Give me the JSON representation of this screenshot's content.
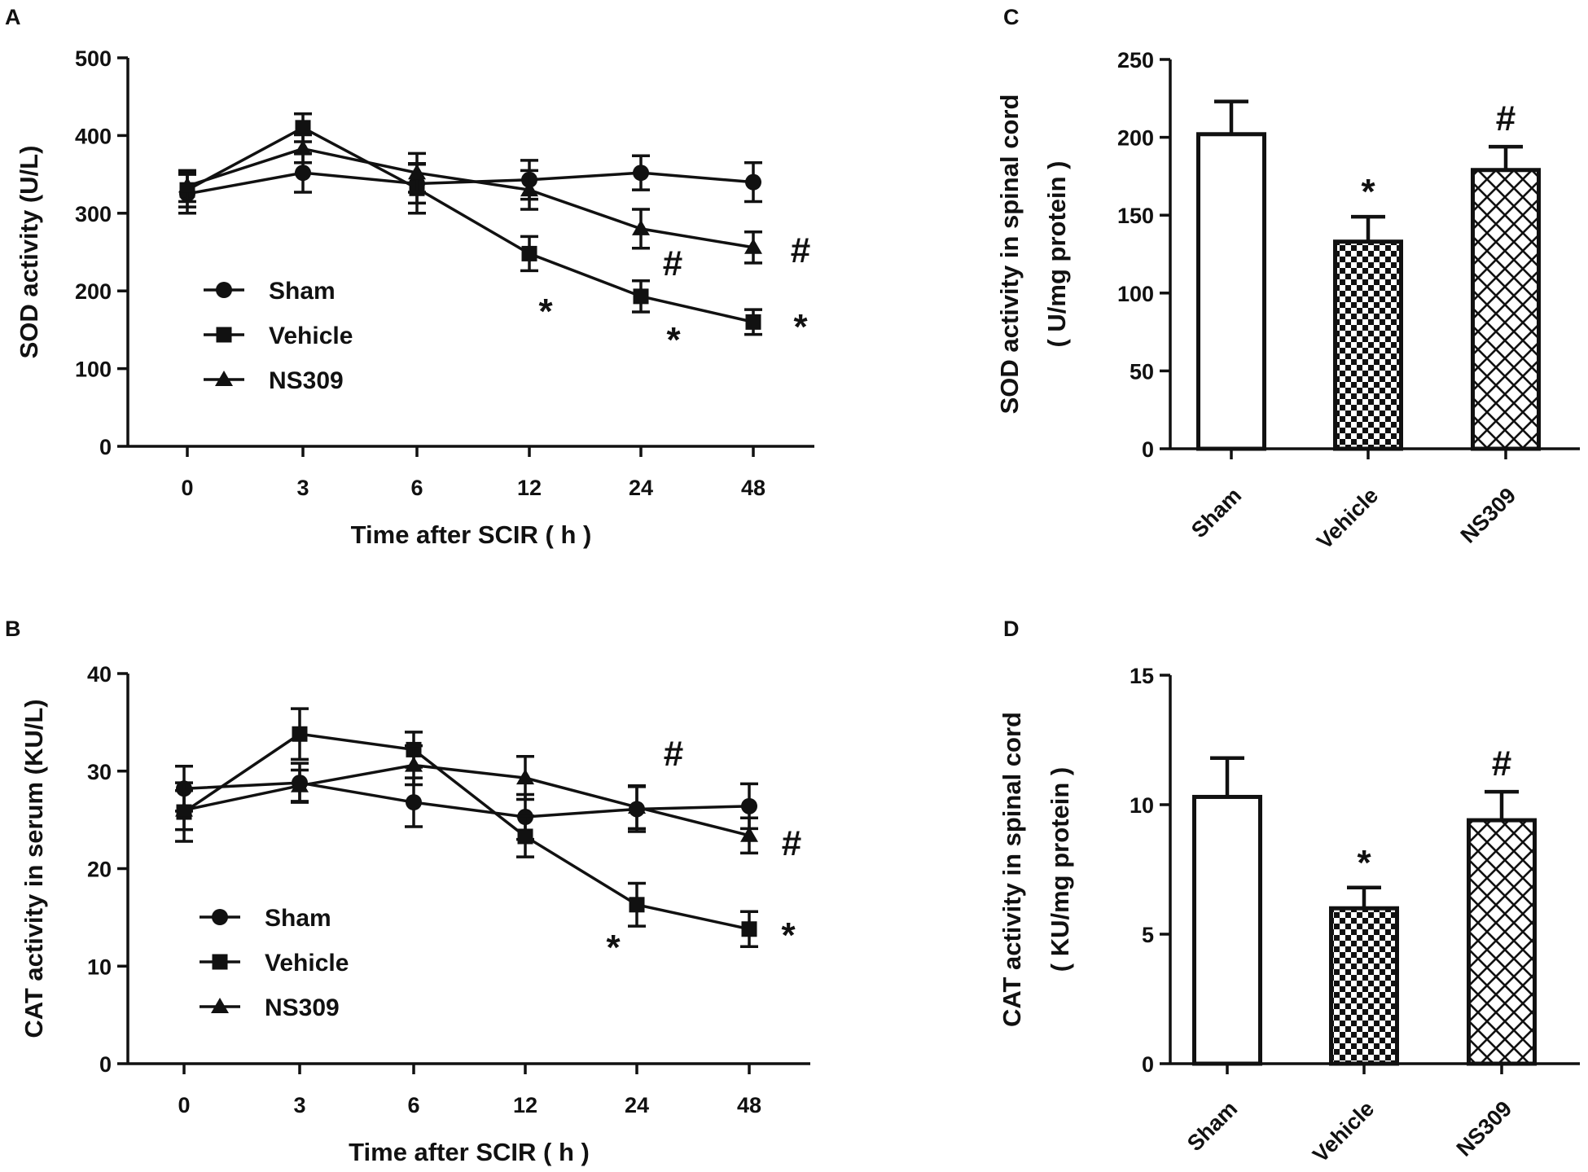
{
  "chart_data": [
    {
      "panel": "A",
      "type": "line",
      "ylabel": "SOD activity (U/L)",
      "xlabel": "Time after SCIR ( h )",
      "categories": [
        "0",
        "3",
        "6",
        "12",
        "24",
        "48"
      ],
      "ylim": [
        0,
        500
      ],
      "yticks": [
        0,
        100,
        200,
        300,
        400,
        500
      ],
      "legend": [
        "Sham",
        "Vehicle",
        "NS309"
      ],
      "legend_position": "bottom-left",
      "series": [
        {
          "name": "Sham",
          "marker": "circle",
          "values": [
            325,
            352,
            338,
            343,
            352,
            340
          ],
          "errors": [
            25,
            25,
            25,
            25,
            22,
            25
          ]
        },
        {
          "name": "Vehicle",
          "marker": "square",
          "values": [
            330,
            410,
            332,
            248,
            193,
            160
          ],
          "errors": [
            22,
            18,
            32,
            22,
            20,
            16
          ]
        },
        {
          "name": "NS309",
          "marker": "triangle",
          "values": [
            335,
            383,
            352,
            330,
            280,
            256
          ],
          "errors": [
            20,
            18,
            25,
            25,
            25,
            20
          ]
        }
      ],
      "annotations": [
        {
          "text": "*",
          "category_index": 3,
          "near_value": 180
        },
        {
          "text": "#",
          "category_index": 4,
          "near_value": 232
        },
        {
          "text": "*",
          "category_index": 4,
          "near_value": 140
        },
        {
          "text": "#",
          "category_index": 5,
          "near_value": 258
        },
        {
          "text": "*",
          "category_index": 5,
          "near_value": 150
        }
      ]
    },
    {
      "panel": "B",
      "type": "line",
      "ylabel": "CAT activity in serum (KU/L)",
      "xlabel": "Time after SCIR ( h )",
      "categories": [
        "0",
        "3",
        "6",
        "12",
        "24",
        "48"
      ],
      "ylim": [
        0,
        40
      ],
      "yticks": [
        0,
        10,
        20,
        30,
        40
      ],
      "legend": [
        "Sham",
        "Vehicle",
        "NS309"
      ],
      "legend_position": "bottom-left",
      "series": [
        {
          "name": "Sham",
          "marker": "circle",
          "values": [
            28.2,
            28.8,
            26.8,
            25.3,
            26.1,
            26.4
          ],
          "errors": [
            2.3,
            2.0,
            2.5,
            2.3,
            2.3,
            2.3
          ]
        },
        {
          "name": "Vehicle",
          "marker": "square",
          "values": [
            25.8,
            33.8,
            32.2,
            23.3,
            16.3,
            13.8
          ],
          "errors": [
            3.0,
            2.6,
            1.8,
            2.1,
            2.2,
            1.8
          ]
        },
        {
          "name": "NS309",
          "marker": "triangle",
          "values": [
            26.0,
            28.5,
            30.6,
            29.3,
            26.3,
            23.4
          ],
          "errors": [
            2.0,
            1.6,
            2.0,
            2.2,
            2.2,
            1.8
          ]
        }
      ],
      "annotations": [
        {
          "text": "#",
          "category_index": 4,
          "near_value": 31.5
        },
        {
          "text": "*",
          "category_index": 4,
          "near_value": 11.5
        },
        {
          "text": "#",
          "category_index": 5,
          "near_value": 22.2
        },
        {
          "text": "*",
          "category_index": 5,
          "near_value": 13.2
        }
      ]
    },
    {
      "panel": "C",
      "type": "bar",
      "ylabel_lines": [
        "SOD activity in spinal cord",
        "( U/mg protein )"
      ],
      "categories": [
        "Sham",
        "Vehicle",
        "NS309"
      ],
      "values": [
        202,
        133,
        179
      ],
      "errors": [
        21,
        16,
        15
      ],
      "patterns": [
        "none",
        "checker",
        "crosshatch"
      ],
      "ylim": [
        0,
        250
      ],
      "yticks": [
        0,
        50,
        100,
        150,
        200,
        250
      ],
      "annotations": [
        {
          "text": "*",
          "category_index": 1
        },
        {
          "text": "#",
          "category_index": 2
        }
      ]
    },
    {
      "panel": "D",
      "type": "bar",
      "ylabel_lines": [
        "CAT activity in spinal cord",
        "( KU/mg protein )"
      ],
      "categories": [
        "Sham",
        "Vehicle",
        "NS309"
      ],
      "values": [
        10.3,
        6.0,
        9.4
      ],
      "errors": [
        1.5,
        0.8,
        1.1
      ],
      "patterns": [
        "none",
        "checker",
        "crosshatch"
      ],
      "ylim": [
        0,
        15
      ],
      "yticks": [
        0,
        5,
        10,
        15
      ],
      "annotations": [
        {
          "text": "*",
          "category_index": 1
        },
        {
          "text": "#",
          "category_index": 2
        }
      ]
    }
  ]
}
